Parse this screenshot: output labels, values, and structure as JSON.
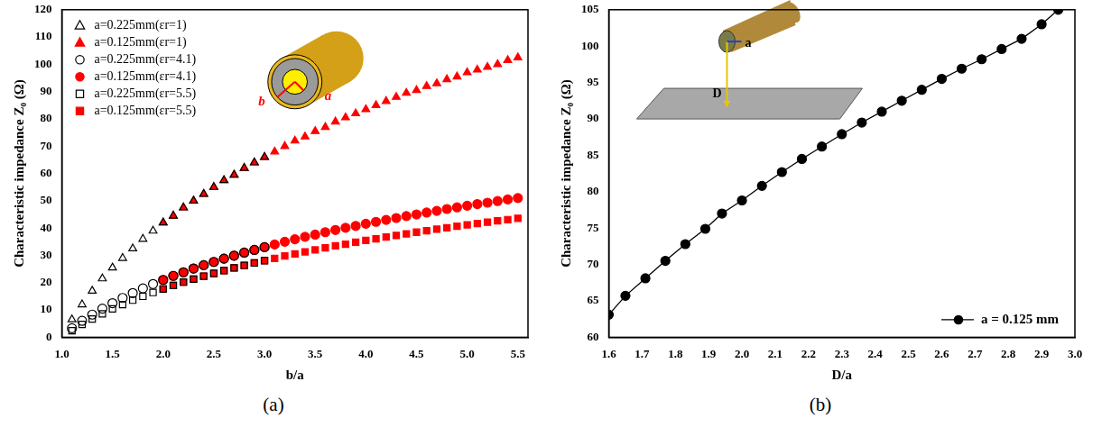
{
  "chart_data": [
    {
      "type": "scatter",
      "panel_label": "(a)",
      "x_label": "b/a",
      "y_label": "Characteristic impedance Z₀ (Ω)",
      "annotations": [
        "a",
        "b"
      ],
      "xlim": [
        1.0,
        5.6
      ],
      "xticks": [
        {
          "value": 1,
          "label": "1.0"
        },
        1.5,
        {
          "value": 2,
          "label": "2.0"
        },
        2.5,
        {
          "value": 3,
          "label": "3.0"
        },
        3.5,
        {
          "value": 4,
          "label": "4.0"
        },
        4.5,
        {
          "value": 5,
          "label": "5.0"
        },
        5.5
      ],
      "ylim": [
        0,
        120
      ],
      "yticks": [
        0,
        10,
        20,
        30,
        40,
        50,
        60,
        70,
        80,
        90,
        100,
        110,
        120
      ],
      "grid": false,
      "legend": "upper left",
      "series": [
        {
          "name": "a=0.225mm(εr=1)",
          "color": "#000000",
          "marker": "triangle-open",
          "x": [
            1.1,
            1.2,
            1.3,
            1.4,
            1.5,
            1.6,
            1.7,
            1.8,
            1.9,
            2.0,
            2.1,
            2.2,
            2.3,
            2.4,
            2.5,
            2.6,
            2.7,
            2.8,
            2.9,
            3.0
          ],
          "values": [
            6.5,
            12,
            17,
            21.5,
            25.5,
            29,
            32.5,
            36,
            39,
            42,
            44.5,
            47.5,
            50,
            52.5,
            55,
            57.5,
            59.5,
            62,
            64,
            66
          ]
        },
        {
          "name": "a=0.125mm(εr=1)",
          "color": "#ff0000",
          "marker": "triangle",
          "x": [
            2.0,
            2.1,
            2.2,
            2.3,
            2.4,
            2.5,
            2.6,
            2.7,
            2.8,
            2.9,
            3.0,
            3.1,
            3.2,
            3.3,
            3.4,
            3.5,
            3.6,
            3.7,
            3.8,
            3.9,
            4.0,
            4.1,
            4.2,
            4.3,
            4.4,
            4.5,
            4.6,
            4.7,
            4.8,
            4.9,
            5.0,
            5.1,
            5.2,
            5.3,
            5.4,
            5.5
          ],
          "values": [
            42,
            44.5,
            47.5,
            50,
            52.5,
            55,
            57.5,
            59.5,
            62,
            64,
            66,
            68,
            70,
            72,
            73.5,
            75.5,
            77,
            79,
            80.5,
            82,
            83.5,
            85,
            86.5,
            88,
            89.5,
            90.5,
            92,
            93,
            94.5,
            95.5,
            97,
            98,
            99,
            100,
            101.5,
            102.5
          ]
        },
        {
          "name": "a=0.225mm(εr=4.1)",
          "color": "#000000",
          "marker": "circle-open",
          "x": [
            1.1,
            1.2,
            1.3,
            1.4,
            1.5,
            1.6,
            1.7,
            1.8,
            1.9,
            2.0,
            2.1,
            2.2,
            2.3,
            2.4,
            2.5,
            2.6,
            2.7,
            2.8,
            2.9,
            3.0
          ],
          "values": [
            3.3,
            6,
            8.3,
            10.5,
            12.5,
            14.4,
            16.2,
            17.9,
            19.5,
            21,
            22.5,
            23.8,
            25.2,
            26.4,
            27.6,
            28.8,
            29.9,
            31,
            32,
            33
          ]
        },
        {
          "name": "a=0.125mm(εr=4.1)",
          "color": "#ff0000",
          "marker": "circle",
          "x": [
            2.0,
            2.1,
            2.2,
            2.3,
            2.4,
            2.5,
            2.6,
            2.7,
            2.8,
            2.9,
            3.0,
            3.1,
            3.2,
            3.3,
            3.4,
            3.5,
            3.6,
            3.7,
            3.8,
            3.9,
            4.0,
            4.1,
            4.2,
            4.3,
            4.4,
            4.5,
            4.6,
            4.7,
            4.8,
            4.9,
            5.0,
            5.1,
            5.2,
            5.3,
            5.4,
            5.5
          ],
          "values": [
            21,
            22.5,
            23.8,
            25.2,
            26.4,
            27.6,
            28.8,
            29.9,
            31,
            32,
            33,
            34,
            35,
            35.9,
            36.8,
            37.6,
            38.5,
            39.3,
            40.1,
            40.8,
            41.6,
            42.3,
            43,
            43.7,
            44.4,
            45,
            45.7,
            46.3,
            47,
            47.6,
            48.2,
            48.8,
            49.3,
            49.9,
            50.5,
            51
          ]
        },
        {
          "name": "a=0.225mm(εr=5.5)",
          "color": "#000000",
          "marker": "square-open",
          "x": [
            1.1,
            1.2,
            1.3,
            1.4,
            1.5,
            1.6,
            1.7,
            1.8,
            1.9,
            2.0,
            2.1,
            2.2,
            2.3,
            2.4,
            2.5,
            2.6,
            2.7,
            2.8,
            2.9,
            3.0
          ],
          "values": [
            2.4,
            4.7,
            6.7,
            8.6,
            10.4,
            12,
            13.6,
            15,
            16.4,
            17.7,
            19,
            20.2,
            21.3,
            22.4,
            23.4,
            24.4,
            25.4,
            26.3,
            27.2,
            28.1
          ]
        },
        {
          "name": "a=0.125mm(εr=5.5)",
          "color": "#ff0000",
          "marker": "square",
          "x": [
            2.0,
            2.1,
            2.2,
            2.3,
            2.4,
            2.5,
            2.6,
            2.7,
            2.8,
            2.9,
            3.0,
            3.1,
            3.2,
            3.3,
            3.4,
            3.5,
            3.6,
            3.7,
            3.8,
            3.9,
            4.0,
            4.1,
            4.2,
            4.3,
            4.4,
            4.5,
            4.6,
            4.7,
            4.8,
            4.9,
            5.0,
            5.1,
            5.2,
            5.3,
            5.4,
            5.5
          ],
          "values": [
            17.7,
            19,
            20.2,
            21.3,
            22.4,
            23.4,
            24.4,
            25.4,
            26.3,
            27.2,
            28.1,
            28.9,
            29.8,
            30.5,
            31.3,
            32,
            32.8,
            33.5,
            34.1,
            34.8,
            35.5,
            36.1,
            36.7,
            37.3,
            37.9,
            38.5,
            39,
            39.6,
            40.1,
            40.7,
            41.2,
            41.7,
            42.2,
            42.7,
            43.1,
            43.6
          ]
        }
      ]
    },
    {
      "type": "line",
      "panel_label": "(b)",
      "x_label": "D/a",
      "y_label": "Characteristic impedance Z₀ (Ω)",
      "annotations": [
        "a",
        "D"
      ],
      "xlim": [
        1.6,
        3.0
      ],
      "xticks": [
        1.6,
        1.7,
        1.8,
        1.9,
        {
          "value": 2,
          "label": "2.0"
        },
        2.1,
        2.2,
        2.3,
        2.4,
        2.5,
        2.6,
        2.7,
        2.8,
        2.9,
        {
          "value": 3,
          "label": "3.0"
        }
      ],
      "ylim": [
        60,
        105
      ],
      "yticks": [
        60,
        65,
        70,
        75,
        80,
        85,
        90,
        95,
        100,
        105
      ],
      "grid": false,
      "legend": "lower right",
      "series": [
        {
          "name": "a = 0.125 mm",
          "color": "#000000",
          "marker": "circle",
          "line_style": "solid",
          "x": [
            1.6,
            1.65,
            1.71,
            1.77,
            1.83,
            1.89,
            1.94,
            2.0,
            2.06,
            2.12,
            2.18,
            2.24,
            2.3,
            2.36,
            2.42,
            2.48,
            2.54,
            2.6,
            2.66,
            2.72,
            2.78,
            2.84,
            2.9,
            2.95
          ],
          "values": [
            63.1,
            65.7,
            68.1,
            70.5,
            72.8,
            74.9,
            77.0,
            78.8,
            80.8,
            82.7,
            84.5,
            86.2,
            87.9,
            89.5,
            91.0,
            92.5,
            94.0,
            95.5,
            96.9,
            98.2,
            99.6,
            101.0,
            103.0,
            105.0
          ]
        }
      ]
    }
  ]
}
